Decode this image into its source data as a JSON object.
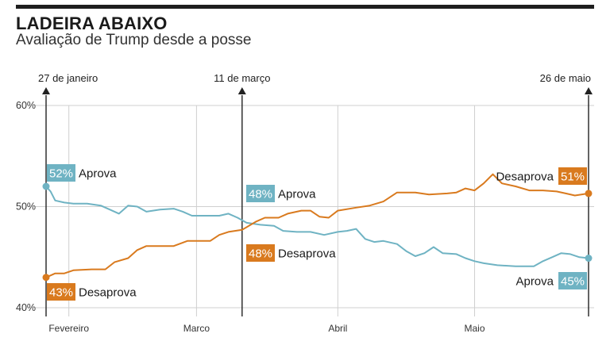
{
  "header": {
    "title": "LADEIRA ABAIXO",
    "subtitle": "Avaliação de Trump desde a posse"
  },
  "chart_data": {
    "type": "line",
    "ylim": [
      40,
      60
    ],
    "y_ticks": [
      {
        "value": 60,
        "label": "60%"
      },
      {
        "value": 50,
        "label": "50%"
      },
      {
        "value": 40,
        "label": "40%"
      }
    ],
    "x_range": [
      "2017-01-27",
      "2017-05-26"
    ],
    "x_ticks": [
      {
        "date": "2017-02-01",
        "label": "Fevereiro"
      },
      {
        "date": "2017-03-01",
        "label": "Marco"
      },
      {
        "date": "2017-04-01",
        "label": "Abril"
      },
      {
        "date": "2017-05-01",
        "label": "Maio"
      }
    ],
    "markers": [
      {
        "date": "2017-01-27",
        "label": "27 de janeiro"
      },
      {
        "date": "2017-03-11",
        "label": "11 de março"
      },
      {
        "date": "2017-05-26",
        "label": "26 de maio"
      }
    ],
    "grid": true,
    "colors": {
      "approve": "#6fb3c3",
      "disapprove": "#d97a1e",
      "marker": "#222222",
      "grid": "#cfcfcf"
    },
    "series": [
      {
        "name": "Aprova",
        "color": "#6fb3c3",
        "points": [
          [
            "2017-01-27",
            52.0
          ],
          [
            "2017-01-28",
            51.5
          ],
          [
            "2017-01-29",
            50.6
          ],
          [
            "2017-01-31",
            50.4
          ],
          [
            "2017-02-02",
            50.3
          ],
          [
            "2017-02-05",
            50.3
          ],
          [
            "2017-02-08",
            50.1
          ],
          [
            "2017-02-10",
            49.7
          ],
          [
            "2017-02-12",
            49.3
          ],
          [
            "2017-02-14",
            50.1
          ],
          [
            "2017-02-16",
            50.0
          ],
          [
            "2017-02-18",
            49.5
          ],
          [
            "2017-02-21",
            49.7
          ],
          [
            "2017-02-24",
            49.8
          ],
          [
            "2017-02-26",
            49.5
          ],
          [
            "2017-02-28",
            49.1
          ],
          [
            "2017-03-03",
            49.1
          ],
          [
            "2017-03-06",
            49.1
          ],
          [
            "2017-03-08",
            49.3
          ],
          [
            "2017-03-10",
            48.9
          ],
          [
            "2017-03-12",
            48.4
          ],
          [
            "2017-03-15",
            48.2
          ],
          [
            "2017-03-18",
            48.1
          ],
          [
            "2017-03-20",
            47.6
          ],
          [
            "2017-03-23",
            47.5
          ],
          [
            "2017-03-26",
            47.5
          ],
          [
            "2017-03-29",
            47.2
          ],
          [
            "2017-04-01",
            47.5
          ],
          [
            "2017-04-03",
            47.6
          ],
          [
            "2017-04-05",
            47.8
          ],
          [
            "2017-04-07",
            46.8
          ],
          [
            "2017-04-09",
            46.5
          ],
          [
            "2017-04-11",
            46.6
          ],
          [
            "2017-04-14",
            46.3
          ],
          [
            "2017-04-16",
            45.6
          ],
          [
            "2017-04-18",
            45.1
          ],
          [
            "2017-04-20",
            45.4
          ],
          [
            "2017-04-22",
            46.0
          ],
          [
            "2017-04-24",
            45.4
          ],
          [
            "2017-04-27",
            45.3
          ],
          [
            "2017-04-29",
            44.9
          ],
          [
            "2017-05-01",
            44.6
          ],
          [
            "2017-05-03",
            44.4
          ],
          [
            "2017-05-06",
            44.2
          ],
          [
            "2017-05-10",
            44.1
          ],
          [
            "2017-05-14",
            44.1
          ],
          [
            "2017-05-16",
            44.6
          ],
          [
            "2017-05-18",
            45.0
          ],
          [
            "2017-05-20",
            45.4
          ],
          [
            "2017-05-22",
            45.3
          ],
          [
            "2017-05-24",
            45.0
          ],
          [
            "2017-05-26",
            44.9
          ]
        ],
        "labels": [
          {
            "value_label": "52%",
            "name": "Aprova",
            "date": "2017-01-27"
          },
          {
            "value_label": "48%",
            "name": "Aprova",
            "date": "2017-03-11"
          },
          {
            "value_label": "45%",
            "name": "Aprova",
            "date": "2017-05-26"
          }
        ]
      },
      {
        "name": "Desaprova",
        "color": "#d97a1e",
        "points": [
          [
            "2017-01-27",
            43.0
          ],
          [
            "2017-01-29",
            43.4
          ],
          [
            "2017-01-31",
            43.4
          ],
          [
            "2017-02-02",
            43.7
          ],
          [
            "2017-02-06",
            43.8
          ],
          [
            "2017-02-09",
            43.8
          ],
          [
            "2017-02-11",
            44.5
          ],
          [
            "2017-02-14",
            44.9
          ],
          [
            "2017-02-16",
            45.7
          ],
          [
            "2017-02-18",
            46.1
          ],
          [
            "2017-02-21",
            46.1
          ],
          [
            "2017-02-24",
            46.1
          ],
          [
            "2017-02-27",
            46.6
          ],
          [
            "2017-03-01",
            46.6
          ],
          [
            "2017-03-04",
            46.6
          ],
          [
            "2017-03-06",
            47.2
          ],
          [
            "2017-03-08",
            47.5
          ],
          [
            "2017-03-11",
            47.7
          ],
          [
            "2017-03-14",
            48.5
          ],
          [
            "2017-03-16",
            48.9
          ],
          [
            "2017-03-19",
            48.9
          ],
          [
            "2017-03-21",
            49.3
          ],
          [
            "2017-03-24",
            49.6
          ],
          [
            "2017-03-26",
            49.6
          ],
          [
            "2017-03-28",
            49.0
          ],
          [
            "2017-03-30",
            48.9
          ],
          [
            "2017-04-01",
            49.6
          ],
          [
            "2017-04-05",
            49.9
          ],
          [
            "2017-04-08",
            50.1
          ],
          [
            "2017-04-11",
            50.5
          ],
          [
            "2017-04-14",
            51.4
          ],
          [
            "2017-04-18",
            51.4
          ],
          [
            "2017-04-21",
            51.2
          ],
          [
            "2017-04-25",
            51.3
          ],
          [
            "2017-04-27",
            51.4
          ],
          [
            "2017-04-29",
            51.8
          ],
          [
            "2017-05-01",
            51.6
          ],
          [
            "2017-05-03",
            52.3
          ],
          [
            "2017-05-05",
            53.2
          ],
          [
            "2017-05-07",
            52.3
          ],
          [
            "2017-05-10",
            52.0
          ],
          [
            "2017-05-13",
            51.6
          ],
          [
            "2017-05-16",
            51.6
          ],
          [
            "2017-05-19",
            51.5
          ],
          [
            "2017-05-21",
            51.3
          ],
          [
            "2017-05-23",
            51.1
          ],
          [
            "2017-05-26",
            51.3
          ]
        ],
        "labels": [
          {
            "value_label": "43%",
            "name": "Desaprova",
            "date": "2017-01-27"
          },
          {
            "value_label": "48%",
            "name": "Desaprova",
            "date": "2017-03-11"
          },
          {
            "value_label": "51%",
            "name": "Desaprova",
            "date": "2017-05-26"
          }
        ]
      }
    ]
  }
}
